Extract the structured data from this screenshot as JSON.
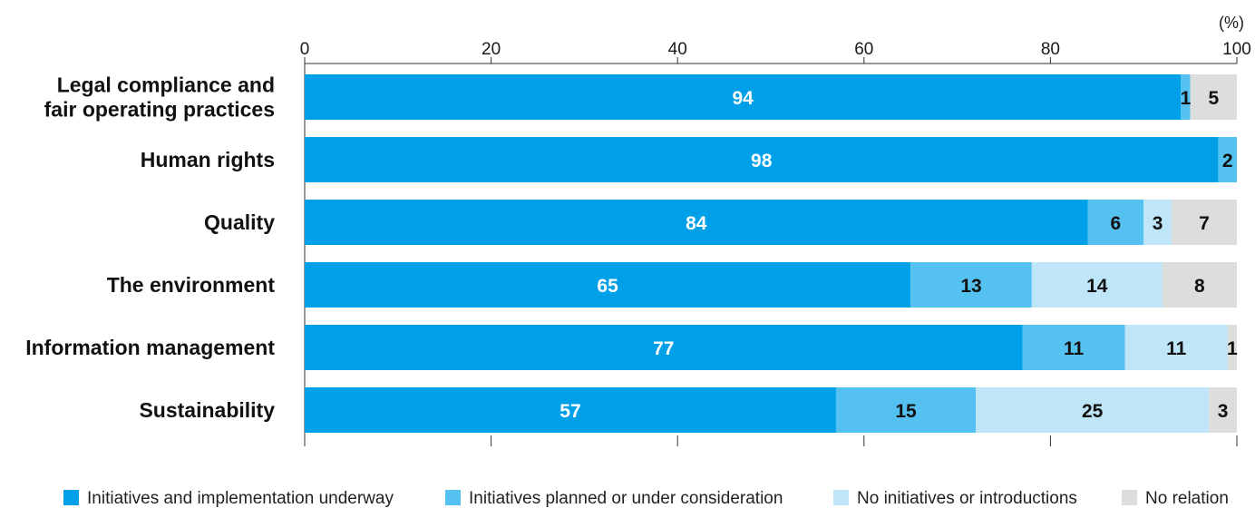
{
  "chart_data": {
    "type": "bar",
    "orientation": "horizontal",
    "stacked": true,
    "unit_label": "(%)",
    "xlim": [
      0,
      100
    ],
    "xticks": [
      0,
      20,
      40,
      60,
      80,
      100
    ],
    "grid": false,
    "legend_position": "bottom",
    "categories": [
      [
        "Legal compliance and",
        "fair operating practices"
      ],
      [
        "Human rights"
      ],
      [
        "Quality"
      ],
      [
        "The environment"
      ],
      [
        "Information management"
      ],
      [
        "Sustainability"
      ]
    ],
    "series": [
      {
        "name": "Initiatives and implementation underway",
        "color": "#00a0e9",
        "label_color": "#ffffff",
        "values": [
          94,
          98,
          84,
          65,
          77,
          57
        ]
      },
      {
        "name": "Initiatives planned or under consideration",
        "color": "#55c1f0",
        "label_color": "#111111",
        "values": [
          1,
          2,
          6,
          13,
          11,
          15
        ]
      },
      {
        "name": "No initiatives or introductions",
        "color": "#bfe5f8",
        "label_color": "#111111",
        "values": [
          0,
          0,
          3,
          14,
          11,
          25
        ]
      },
      {
        "name": "No relation",
        "color": "#dcdddd",
        "label_color": "#111111",
        "values": [
          5,
          0,
          7,
          8,
          1,
          3
        ]
      }
    ]
  }
}
